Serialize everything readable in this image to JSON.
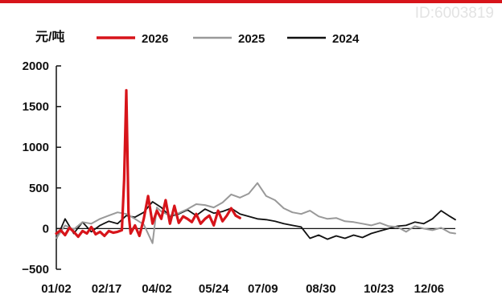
{
  "watermark": "ID:6003819",
  "colors": {
    "top_rule": "#d7141a",
    "s2026": "#d7141a",
    "s2025": "#999999",
    "s2024": "#111111"
  },
  "chart_data": {
    "type": "line",
    "ylabel": "元/吨",
    "ylim": [
      -500,
      2000
    ],
    "yticks": [
      -500,
      0,
      500,
      1000,
      1500,
      2000
    ],
    "ytick_labels": [
      "−500",
      "0",
      "500",
      "1000",
      "1500",
      "2000"
    ],
    "xlim": [
      0,
      365
    ],
    "xticks": [
      0,
      46,
      92,
      144,
      189,
      242,
      295,
      341
    ],
    "xtick_labels": [
      "01/02",
      "02/17",
      "04/02",
      "05/24",
      "07/09",
      "08/30",
      "10/23",
      "12/06"
    ],
    "legend_position": "top",
    "series": [
      {
        "name": "2026",
        "color": "#d7141a",
        "x": [
          0,
          4,
          8,
          12,
          16,
          20,
          24,
          28,
          32,
          36,
          40,
          44,
          48,
          52,
          56,
          60,
          62,
          64,
          65,
          66,
          68,
          72,
          76,
          80,
          84,
          88,
          92,
          96,
          100,
          104,
          108,
          112,
          116,
          120,
          124,
          128,
          132,
          136,
          140,
          144,
          148,
          152,
          156,
          160,
          164,
          168
        ],
        "y": [
          -60,
          -20,
          -80,
          10,
          -40,
          -100,
          -30,
          -60,
          20,
          -70,
          -40,
          -90,
          -30,
          -50,
          -40,
          -20,
          600,
          1700,
          1000,
          200,
          -60,
          40,
          -90,
          120,
          400,
          60,
          220,
          120,
          350,
          60,
          280,
          70,
          150,
          120,
          80,
          180,
          60,
          120,
          160,
          40,
          220,
          90,
          160,
          250,
          160,
          130
        ]
      },
      {
        "name": "2025",
        "color": "#999999",
        "x": [
          0,
          8,
          16,
          24,
          32,
          40,
          48,
          56,
          64,
          72,
          80,
          88,
          92,
          96,
          104,
          112,
          120,
          128,
          136,
          144,
          152,
          160,
          168,
          176,
          184,
          192,
          200,
          208,
          216,
          224,
          232,
          240,
          248,
          256,
          264,
          272,
          280,
          288,
          296,
          304,
          312,
          320,
          328,
          336,
          344,
          352,
          360,
          365
        ],
        "y": [
          -120,
          40,
          -10,
          80,
          60,
          120,
          160,
          200,
          180,
          120,
          50,
          -180,
          260,
          210,
          160,
          190,
          240,
          300,
          290,
          260,
          320,
          420,
          380,
          430,
          560,
          400,
          350,
          250,
          200,
          180,
          220,
          150,
          120,
          130,
          90,
          80,
          60,
          40,
          70,
          30,
          20,
          -40,
          30,
          0,
          -20,
          10,
          -50,
          -60
        ]
      },
      {
        "name": "2024",
        "color": "#111111",
        "x": [
          0,
          8,
          16,
          24,
          32,
          40,
          48,
          56,
          64,
          72,
          80,
          88,
          96,
          104,
          112,
          120,
          128,
          136,
          144,
          152,
          160,
          168,
          176,
          184,
          192,
          200,
          208,
          216,
          224,
          232,
          240,
          248,
          256,
          264,
          272,
          280,
          288,
          296,
          304,
          312,
          320,
          328,
          336,
          344,
          352,
          360,
          365
        ],
        "y": [
          -130,
          120,
          -60,
          80,
          -40,
          40,
          90,
          60,
          160,
          140,
          200,
          330,
          260,
          150,
          180,
          230,
          160,
          240,
          190,
          210,
          250,
          180,
          150,
          120,
          110,
          90,
          60,
          40,
          20,
          -120,
          -80,
          -130,
          -90,
          -120,
          -80,
          -110,
          -60,
          -30,
          0,
          30,
          40,
          80,
          60,
          120,
          220,
          150,
          110
        ]
      }
    ]
  }
}
